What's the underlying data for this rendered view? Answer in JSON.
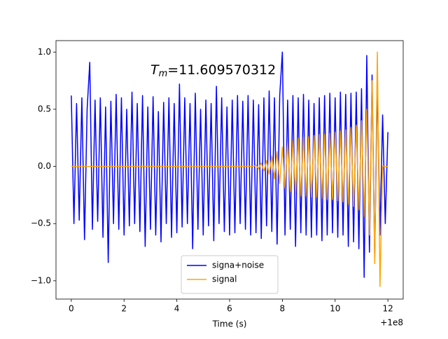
{
  "chart_data": {
    "type": "line",
    "xlabel": "Time (s)",
    "x_offset_label": "+1e8",
    "annotation": {
      "symbol": "T",
      "subscript": "m",
      "value": "=11.609570312"
    },
    "legend": "lower center",
    "xlim": [
      -0.58,
      12.58
    ],
    "xticks": [
      0,
      2,
      4,
      6,
      8,
      10,
      12
    ],
    "ylim": [
      -1.16,
      1.1
    ],
    "yticks": [
      {
        "value": -1,
        "label": "−1.0"
      },
      {
        "value": -0.5,
        "label": "−0.5"
      },
      {
        "value": 0,
        "label": "0.0"
      },
      {
        "value": 0.5,
        "label": "0.5"
      },
      {
        "value": 1,
        "label": "1.0"
      }
    ],
    "x": [
      0,
      0.1,
      0.2,
      0.3,
      0.4,
      0.5,
      0.6,
      0.7,
      0.8,
      0.9,
      1,
      1.1,
      1.2,
      1.3,
      1.4,
      1.5,
      1.6,
      1.7,
      1.8,
      1.9,
      2,
      2.1,
      2.2,
      2.3,
      2.4,
      2.5,
      2.6,
      2.7,
      2.8,
      2.9,
      3,
      3.1,
      3.2,
      3.3,
      3.4,
      3.5,
      3.6,
      3.7,
      3.8,
      3.9,
      4,
      4.1,
      4.2,
      4.3,
      4.4,
      4.5,
      4.6,
      4.7,
      4.8,
      4.9,
      5,
      5.1,
      5.2,
      5.3,
      5.4,
      5.5,
      5.6,
      5.7,
      5.8,
      5.9,
      6,
      6.1,
      6.2,
      6.3,
      6.4,
      6.5,
      6.6,
      6.7,
      6.8,
      6.9,
      7,
      7.1,
      7.2,
      7.3,
      7.4,
      7.5,
      7.6,
      7.7,
      7.8,
      7.9,
      8,
      8.1,
      8.2,
      8.3,
      8.4,
      8.5,
      8.6,
      8.7,
      8.8,
      8.9,
      9,
      9.1,
      9.2,
      9.3,
      9.4,
      9.5,
      9.6,
      9.7,
      9.8,
      9.9,
      10,
      10.1,
      10.2,
      10.3,
      10.4,
      10.5,
      10.6,
      10.7,
      10.8,
      10.9,
      11,
      11.1,
      11.2,
      11.3,
      11.4,
      11.5,
      11.6,
      11.7,
      11.8,
      11.9,
      12
    ],
    "series": [
      {
        "name": "signa+noise",
        "color": "#0000ff",
        "values": [
          0.62,
          -0.5,
          0.55,
          -0.47,
          0.6,
          -0.64,
          0.5,
          0.91,
          -0.55,
          0.58,
          -0.48,
          0.6,
          -0.62,
          0.52,
          -0.84,
          0.57,
          -0.5,
          0.63,
          -0.55,
          0.6,
          -0.6,
          0.5,
          -0.52,
          0.65,
          -0.5,
          0.55,
          -0.57,
          0.62,
          -0.7,
          0.52,
          -0.55,
          0.61,
          -0.6,
          0.48,
          -0.66,
          0.56,
          -0.5,
          0.6,
          -0.62,
          0.55,
          -0.58,
          0.72,
          -0.53,
          0.6,
          -0.5,
          0.55,
          -0.72,
          0.64,
          -0.55,
          0.5,
          -0.6,
          0.58,
          -0.52,
          0.55,
          -0.65,
          0.7,
          -0.5,
          0.6,
          -0.57,
          0.52,
          -0.6,
          0.58,
          -0.58,
          0.62,
          -0.5,
          0.57,
          -0.55,
          0.62,
          -0.6,
          0.58,
          -0.58,
          0.54,
          -0.63,
          0.6,
          -0.52,
          0.66,
          -0.57,
          0.6,
          -0.68,
          0.62,
          1.0,
          -0.6,
          0.58,
          -0.55,
          0.62,
          -0.7,
          0.6,
          -0.58,
          0.63,
          -0.6,
          0.58,
          -0.62,
          0.55,
          -0.6,
          0.6,
          -0.65,
          0.62,
          -0.6,
          0.64,
          -0.58,
          0.6,
          -0.62,
          0.65,
          -0.6,
          0.63,
          -0.7,
          0.64,
          -0.66,
          0.65,
          -0.72,
          0.68,
          -0.97,
          0.97,
          -0.75,
          0.8,
          -0.8,
          0.75,
          -0.6,
          0.45,
          -0.5,
          0.3
        ]
      },
      {
        "name": "signal",
        "color": "#ffa500",
        "values": [
          0,
          0,
          0,
          0,
          0,
          0,
          0,
          0,
          0,
          0,
          0,
          0,
          0,
          0,
          0,
          0,
          0,
          0,
          0,
          0,
          0,
          0,
          0,
          0,
          0,
          0,
          0,
          0,
          0,
          0,
          0,
          0,
          0,
          0,
          0,
          0,
          0,
          0,
          0,
          0,
          0,
          0,
          0,
          0,
          0,
          0,
          0,
          0,
          0,
          0,
          0,
          0,
          0,
          0,
          0,
          0,
          0,
          0,
          0,
          0,
          0,
          0,
          0,
          0,
          0,
          0,
          0,
          0,
          0,
          0,
          0.01,
          -0.02,
          0.03,
          -0.04,
          0.05,
          -0.07,
          0.09,
          -0.11,
          0.13,
          -0.15,
          0.17,
          -0.19,
          0.21,
          -0.22,
          0.23,
          -0.24,
          0.25,
          -0.26,
          0.26,
          -0.26,
          0.26,
          -0.27,
          0.27,
          -0.27,
          0.28,
          -0.28,
          0.28,
          -0.29,
          0.29,
          -0.29,
          0.3,
          -0.3,
          0.31,
          -0.31,
          0.32,
          -0.33,
          0.34,
          -0.35,
          0.36,
          -0.38,
          0.4,
          -0.44,
          0.5,
          -0.6,
          0.75,
          -0.85,
          1.0,
          -1.05,
          0,
          0,
          0
        ]
      }
    ]
  }
}
